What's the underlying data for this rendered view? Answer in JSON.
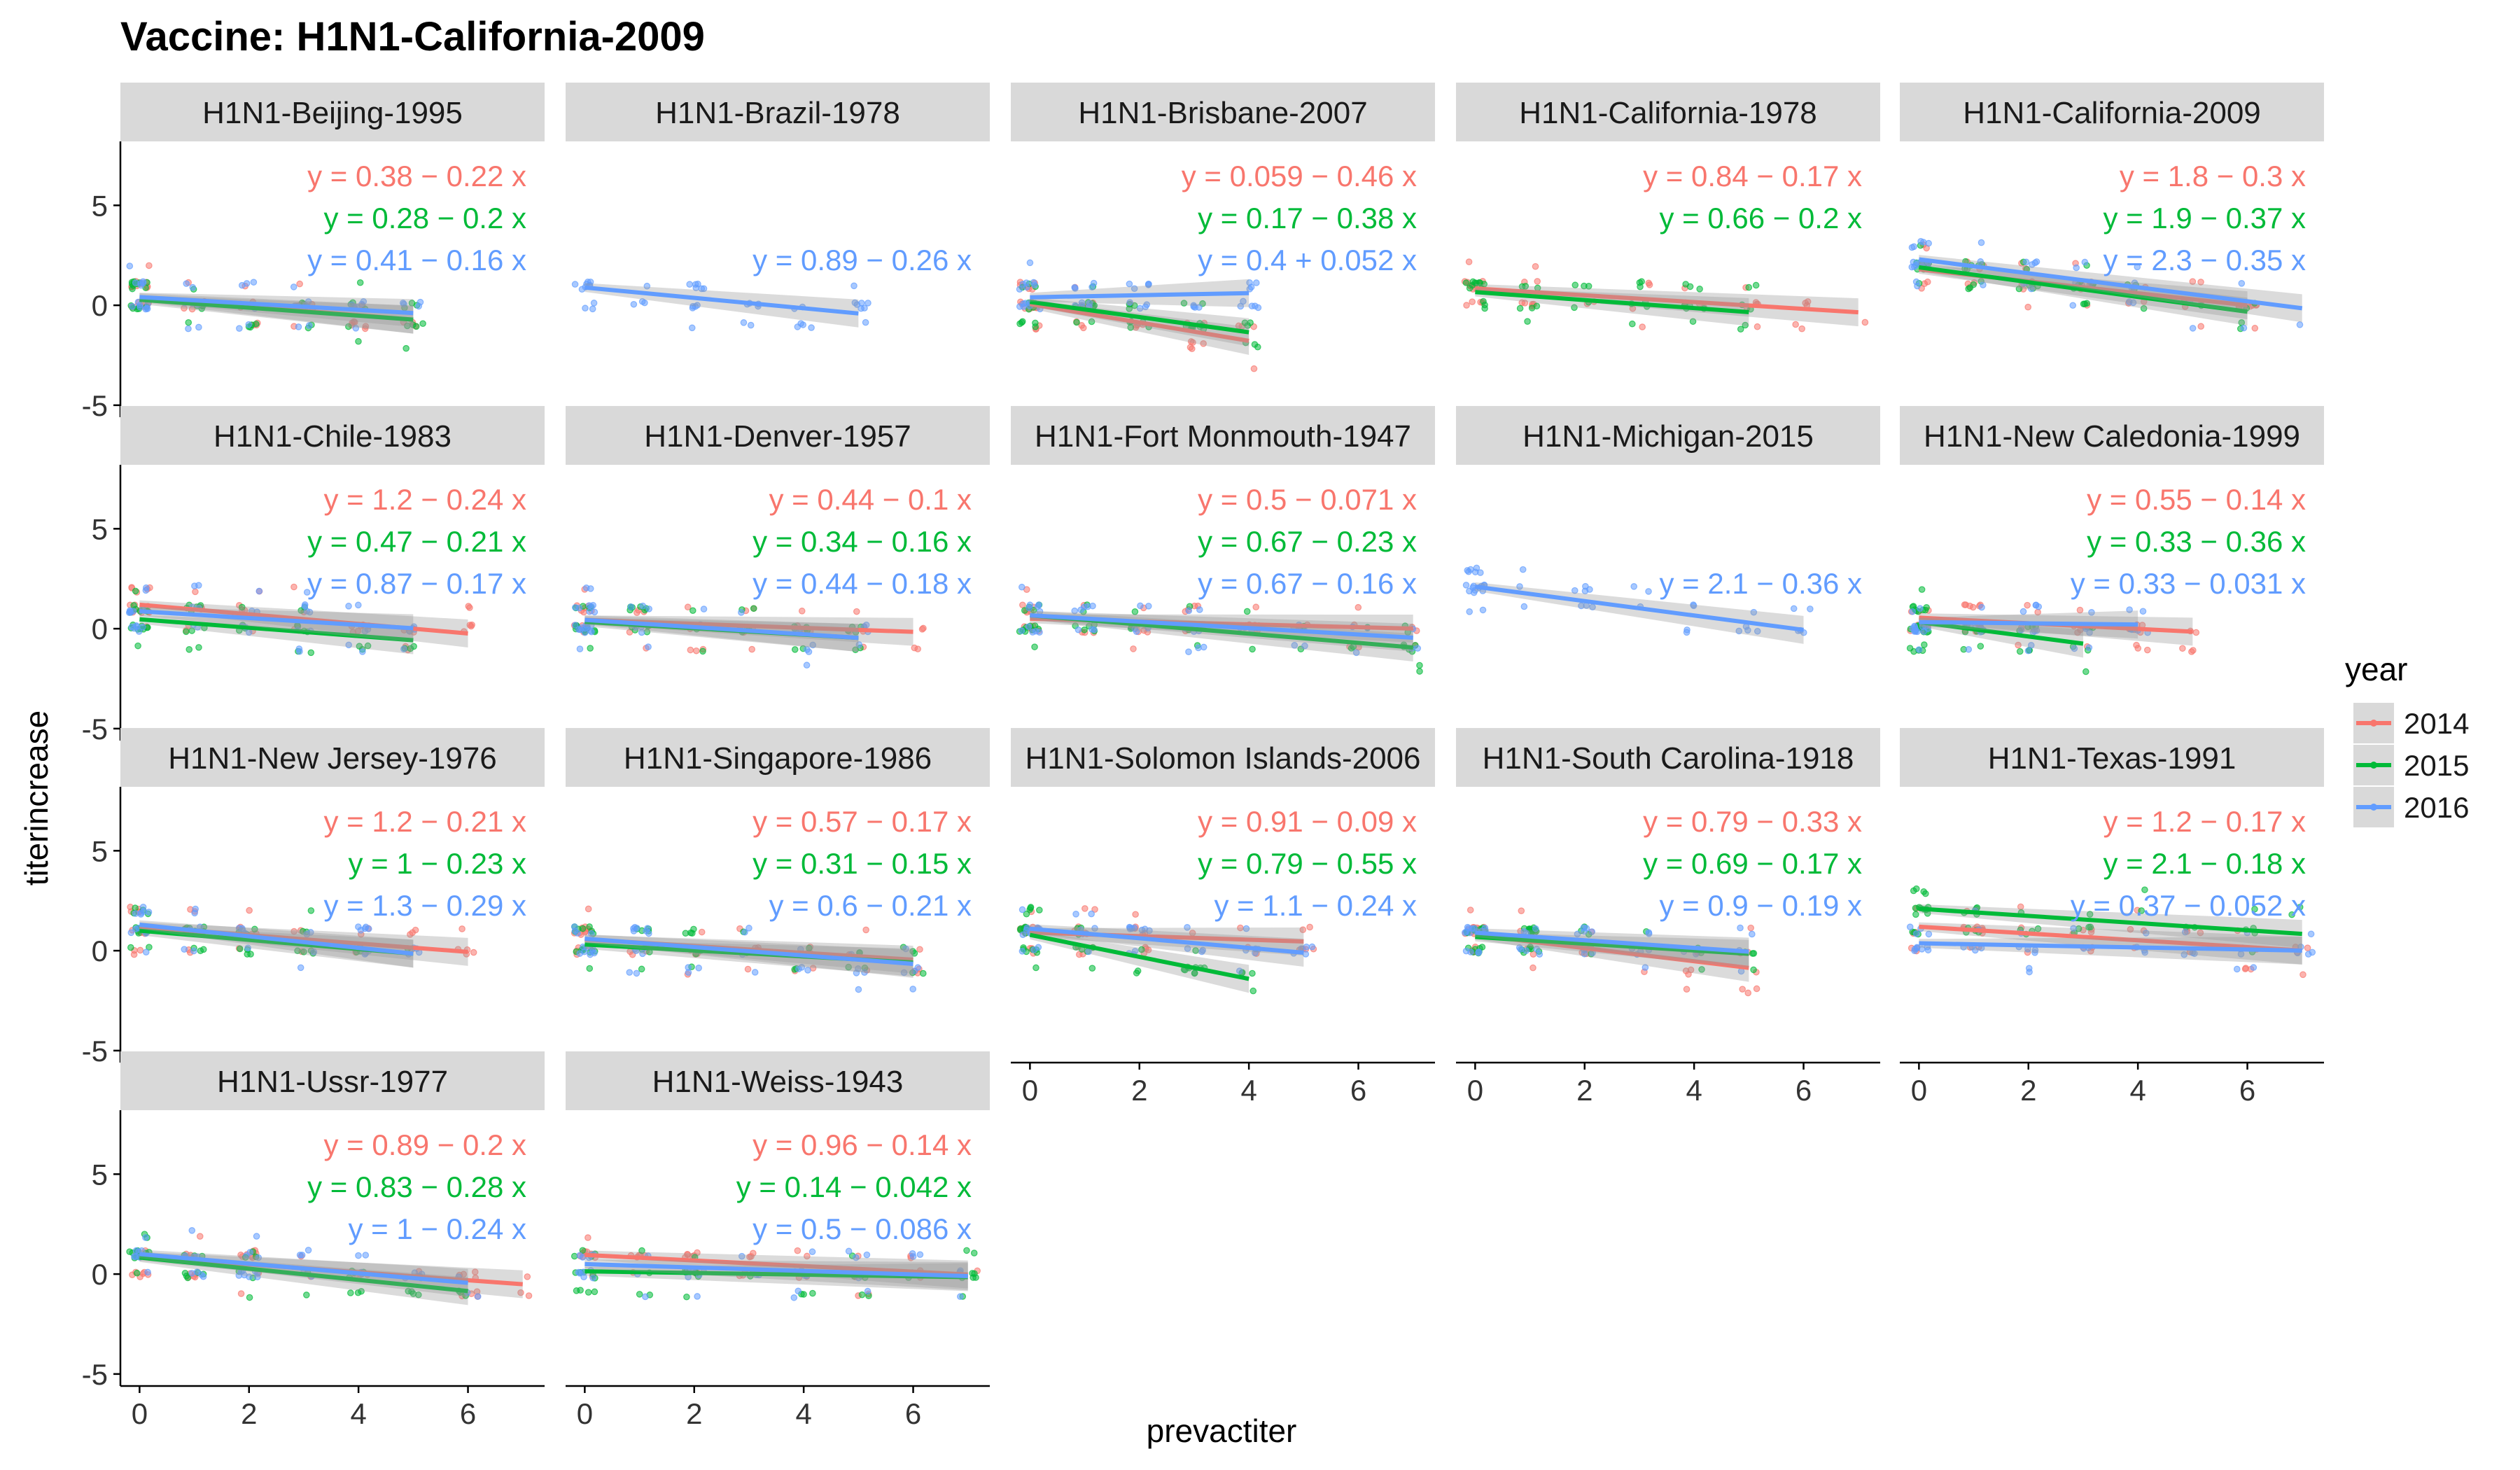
{
  "chart_data": {
    "type": "scatter",
    "title": "Vaccine: H1N1-California-2009",
    "xlabel": "prevactiter",
    "ylabel": "titerincrease",
    "xlim": [
      -0.35,
      7.4
    ],
    "ylim": [
      -5.6,
      8.2
    ],
    "x_ticks": [
      0,
      2,
      4,
      6
    ],
    "y_ticks": [
      5,
      0,
      -5
    ],
    "y_tick_labels": [
      "5",
      "0",
      "-5"
    ],
    "legend": {
      "title": "year",
      "position": "right",
      "entries": [
        {
          "label": "2014",
          "color": "#F8766D"
        },
        {
          "label": "2015",
          "color": "#00BA38"
        },
        {
          "label": "2016",
          "color": "#619CFF"
        }
      ]
    },
    "series_colors": {
      "2014": "#F8766D",
      "2015": "#00BA38",
      "2016": "#619CFF"
    },
    "panels": [
      {
        "strain": "H1N1-Beijing-1995",
        "fits": [
          {
            "year": "2014",
            "intercept": 0.38,
            "slope": -0.22,
            "x_range": [
              0,
              5
            ],
            "label": "y = 0.38 − 0.22 x"
          },
          {
            "year": "2015",
            "intercept": 0.28,
            "slope": -0.2,
            "x_range": [
              0,
              5
            ],
            "label": "y = 0.28 − 0.2 x"
          },
          {
            "year": "2016",
            "intercept": 0.41,
            "slope": -0.16,
            "x_range": [
              0,
              5
            ],
            "label": "y = 0.41 − 0.16 x"
          }
        ]
      },
      {
        "strain": "H1N1-Brazil-1978",
        "fits": [
          {
            "year": "2016",
            "intercept": 0.89,
            "slope": -0.26,
            "x_range": [
              0,
              5
            ],
            "label": "y = 0.89 − 0.26 x"
          }
        ]
      },
      {
        "strain": "H1N1-Brisbane-2007",
        "fits": [
          {
            "year": "2014",
            "intercept": 0.059,
            "slope": -0.46,
            "x_range": [
              0,
              4
            ],
            "label": "y = 0.059 − 0.46 x"
          },
          {
            "year": "2015",
            "intercept": 0.17,
            "slope": -0.38,
            "x_range": [
              0,
              4
            ],
            "label": "y = 0.17 − 0.38 x"
          },
          {
            "year": "2016",
            "intercept": 0.4,
            "slope": 0.052,
            "x_range": [
              0,
              4
            ],
            "label": "y = 0.4 + 0.052 x"
          }
        ]
      },
      {
        "strain": "H1N1-California-1978",
        "fits": [
          {
            "year": "2014",
            "intercept": 0.84,
            "slope": -0.17,
            "x_range": [
              0,
              7
            ],
            "label": "y = 0.84 − 0.17 x"
          },
          {
            "year": "2015",
            "intercept": 0.66,
            "slope": -0.2,
            "x_range": [
              0,
              5
            ],
            "label": "y = 0.66 − 0.2 x"
          }
        ]
      },
      {
        "strain": "H1N1-California-2009",
        "fits": [
          {
            "year": "2014",
            "intercept": 1.8,
            "slope": -0.3,
            "x_range": [
              0,
              6
            ],
            "label": "y = 1.8 − 0.3 x"
          },
          {
            "year": "2015",
            "intercept": 1.9,
            "slope": -0.37,
            "x_range": [
              0,
              6
            ],
            "label": "y = 1.9 − 0.37 x"
          },
          {
            "year": "2016",
            "intercept": 2.3,
            "slope": -0.35,
            "x_range": [
              0,
              7
            ],
            "label": "y = 2.3 − 0.35 x"
          }
        ]
      },
      {
        "strain": "H1N1-Chile-1983",
        "fits": [
          {
            "year": "2014",
            "intercept": 1.2,
            "slope": -0.24,
            "x_range": [
              0,
              6
            ],
            "label": "y = 1.2 − 0.24 x"
          },
          {
            "year": "2015",
            "intercept": 0.47,
            "slope": -0.21,
            "x_range": [
              0,
              5
            ],
            "label": "y = 0.47 − 0.21 x"
          },
          {
            "year": "2016",
            "intercept": 0.87,
            "slope": -0.17,
            "x_range": [
              0,
              5
            ],
            "label": "y = 0.87 − 0.17 x"
          }
        ]
      },
      {
        "strain": "H1N1-Denver-1957",
        "fits": [
          {
            "year": "2014",
            "intercept": 0.44,
            "slope": -0.1,
            "x_range": [
              0,
              6
            ],
            "label": "y = 0.44 − 0.1 x"
          },
          {
            "year": "2015",
            "intercept": 0.34,
            "slope": -0.16,
            "x_range": [
              0,
              5
            ],
            "label": "y = 0.34 − 0.16 x"
          },
          {
            "year": "2016",
            "intercept": 0.44,
            "slope": -0.18,
            "x_range": [
              0,
              5
            ],
            "label": "y = 0.44 − 0.18 x"
          }
        ]
      },
      {
        "strain": "H1N1-Fort Monmouth-1947",
        "fits": [
          {
            "year": "2014",
            "intercept": 0.5,
            "slope": -0.071,
            "x_range": [
              0,
              7
            ],
            "label": "y = 0.5 − 0.071 x"
          },
          {
            "year": "2015",
            "intercept": 0.67,
            "slope": -0.23,
            "x_range": [
              0,
              7
            ],
            "label": "y = 0.67 − 0.23 x"
          },
          {
            "year": "2016",
            "intercept": 0.67,
            "slope": -0.16,
            "x_range": [
              0,
              7
            ],
            "label": "y = 0.67 − 0.16 x"
          }
        ]
      },
      {
        "strain": "H1N1-Michigan-2015",
        "fits": [
          {
            "year": "2016",
            "intercept": 2.1,
            "slope": -0.36,
            "x_range": [
              0,
              6
            ],
            "label": "y = 2.1 − 0.36 x"
          }
        ]
      },
      {
        "strain": "H1N1-New Caledonia-1999",
        "fits": [
          {
            "year": "2014",
            "intercept": 0.55,
            "slope": -0.14,
            "x_range": [
              0,
              5
            ],
            "label": "y = 0.55 − 0.14 x"
          },
          {
            "year": "2015",
            "intercept": 0.33,
            "slope": -0.36,
            "x_range": [
              0,
              3
            ],
            "label": "y = 0.33 − 0.36 x"
          },
          {
            "year": "2016",
            "intercept": 0.33,
            "slope": -0.031,
            "x_range": [
              0,
              4
            ],
            "label": "y = 0.33 − 0.031 x"
          }
        ]
      },
      {
        "strain": "H1N1-New Jersey-1976",
        "fits": [
          {
            "year": "2014",
            "intercept": 1.2,
            "slope": -0.21,
            "x_range": [
              0,
              6
            ],
            "label": "y = 1.2 − 0.21 x"
          },
          {
            "year": "2015",
            "intercept": 1.0,
            "slope": -0.23,
            "x_range": [
              0,
              5
            ],
            "label": "y = 1 − 0.23 x"
          },
          {
            "year": "2016",
            "intercept": 1.3,
            "slope": -0.29,
            "x_range": [
              0,
              5
            ],
            "label": "y = 1.3 − 0.29 x"
          }
        ]
      },
      {
        "strain": "H1N1-Singapore-1986",
        "fits": [
          {
            "year": "2014",
            "intercept": 0.57,
            "slope": -0.17,
            "x_range": [
              0,
              6
            ],
            "label": "y = 0.57 − 0.17 x"
          },
          {
            "year": "2015",
            "intercept": 0.31,
            "slope": -0.15,
            "x_range": [
              0,
              6
            ],
            "label": "y = 0.31 − 0.15 x"
          },
          {
            "year": "2016",
            "intercept": 0.6,
            "slope": -0.21,
            "x_range": [
              0,
              6
            ],
            "label": "y = 0.6 − 0.21 x"
          }
        ]
      },
      {
        "strain": "H1N1-Solomon Islands-2006",
        "fits": [
          {
            "year": "2014",
            "intercept": 0.91,
            "slope": -0.09,
            "x_range": [
              0,
              5
            ],
            "label": "y = 0.91 − 0.09 x"
          },
          {
            "year": "2015",
            "intercept": 0.79,
            "slope": -0.55,
            "x_range": [
              0,
              4
            ],
            "label": "y = 0.79 − 0.55 x"
          },
          {
            "year": "2016",
            "intercept": 1.1,
            "slope": -0.24,
            "x_range": [
              0,
              5
            ],
            "label": "y = 1.1 − 0.24 x"
          }
        ]
      },
      {
        "strain": "H1N1-South Carolina-1918",
        "fits": [
          {
            "year": "2014",
            "intercept": 0.79,
            "slope": -0.33,
            "x_range": [
              0,
              5
            ],
            "label": "y = 0.79 − 0.33 x"
          },
          {
            "year": "2015",
            "intercept": 0.69,
            "slope": -0.17,
            "x_range": [
              0,
              5
            ],
            "label": "y = 0.69 − 0.17 x"
          },
          {
            "year": "2016",
            "intercept": 0.9,
            "slope": -0.19,
            "x_range": [
              0,
              5
            ],
            "label": "y = 0.9 − 0.19 x"
          }
        ]
      },
      {
        "strain": "H1N1-Texas-1991",
        "fits": [
          {
            "year": "2014",
            "intercept": 1.2,
            "slope": -0.17,
            "x_range": [
              0,
              7
            ],
            "label": "y = 1.2 − 0.17 x"
          },
          {
            "year": "2015",
            "intercept": 2.1,
            "slope": -0.18,
            "x_range": [
              0,
              7
            ],
            "label": "y = 2.1 − 0.18 x"
          },
          {
            "year": "2016",
            "intercept": 0.37,
            "slope": -0.052,
            "x_range": [
              0,
              7
            ],
            "label": "y = 0.37 − 0.052 x"
          }
        ]
      },
      {
        "strain": "H1N1-Ussr-1977",
        "fits": [
          {
            "year": "2014",
            "intercept": 0.89,
            "slope": -0.2,
            "x_range": [
              0,
              7
            ],
            "label": "y = 0.89 − 0.2 x"
          },
          {
            "year": "2015",
            "intercept": 0.83,
            "slope": -0.28,
            "x_range": [
              0,
              6
            ],
            "label": "y = 0.83 − 0.28 x"
          },
          {
            "year": "2016",
            "intercept": 1.0,
            "slope": -0.24,
            "x_range": [
              0,
              6
            ],
            "label": "y = 1 − 0.24 x"
          }
        ]
      },
      {
        "strain": "H1N1-Weiss-1943",
        "fits": [
          {
            "year": "2014",
            "intercept": 0.96,
            "slope": -0.14,
            "x_range": [
              0,
              7
            ],
            "label": "y = 0.96 − 0.14 x"
          },
          {
            "year": "2015",
            "intercept": 0.14,
            "slope": -0.042,
            "x_range": [
              0,
              7
            ],
            "label": "y = 0.14 − 0.042 x"
          },
          {
            "year": "2016",
            "intercept": 0.5,
            "slope": -0.086,
            "x_range": [
              0,
              7
            ],
            "label": "y = 0.5 − 0.086 x"
          }
        ]
      }
    ]
  }
}
